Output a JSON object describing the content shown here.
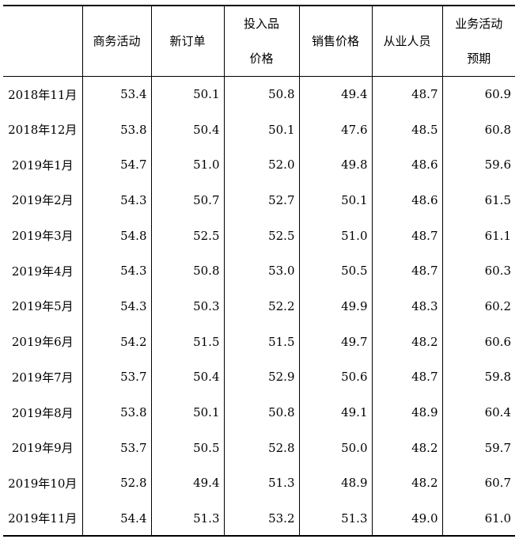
{
  "table": {
    "headers": [
      {
        "l1": "",
        "l2": ""
      },
      {
        "l1": "商务活动",
        "l2": ""
      },
      {
        "l1": "新订单",
        "l2": ""
      },
      {
        "l1": "投入品",
        "l2": "价格"
      },
      {
        "l1": "销售价格",
        "l2": ""
      },
      {
        "l1": "从业人员",
        "l2": ""
      },
      {
        "l1": "业务活动",
        "l2": "预期"
      }
    ],
    "rows": [
      [
        "2018年11月",
        "53.4",
        "50.1",
        "50.8",
        "49.4",
        "48.7",
        "60.9"
      ],
      [
        "2018年12月",
        "53.8",
        "50.4",
        "50.1",
        "47.6",
        "48.5",
        "60.8"
      ],
      [
        "2019年1月",
        "54.7",
        "51.0",
        "52.0",
        "49.8",
        "48.6",
        "59.6"
      ],
      [
        "2019年2月",
        "54.3",
        "50.7",
        "52.7",
        "50.1",
        "48.6",
        "61.5"
      ],
      [
        "2019年3月",
        "54.8",
        "52.5",
        "52.5",
        "51.0",
        "48.7",
        "61.1"
      ],
      [
        "2019年4月",
        "54.3",
        "50.8",
        "53.0",
        "50.5",
        "48.7",
        "60.3"
      ],
      [
        "2019年5月",
        "54.3",
        "50.3",
        "52.2",
        "49.9",
        "48.3",
        "60.2"
      ],
      [
        "2019年6月",
        "54.2",
        "51.5",
        "51.5",
        "49.7",
        "48.2",
        "60.6"
      ],
      [
        "2019年7月",
        "53.7",
        "50.4",
        "52.9",
        "50.6",
        "48.7",
        "59.8"
      ],
      [
        "2019年8月",
        "53.8",
        "50.1",
        "50.8",
        "49.1",
        "48.9",
        "60.4"
      ],
      [
        "2019年9月",
        "53.7",
        "50.5",
        "52.8",
        "50.0",
        "48.2",
        "59.7"
      ],
      [
        "2019年10月",
        "52.8",
        "49.4",
        "51.3",
        "48.9",
        "48.2",
        "60.7"
      ],
      [
        "2019年11月",
        "54.4",
        "51.3",
        "53.2",
        "51.3",
        "49.0",
        "61.0"
      ]
    ]
  }
}
